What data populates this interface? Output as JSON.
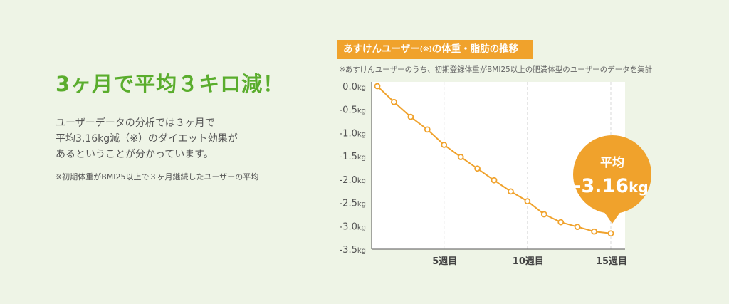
{
  "left": {
    "headline": "3ヶ月で平均３キロ減！",
    "body_lines": [
      "ユーザーデータの分析では３ヶ月で",
      "平均3.16kg減（※）のダイエット効果が",
      "あるということが分かっています。"
    ],
    "note": "※初期体重がBMI25以上で３ヶ月継続したユーザーの平均"
  },
  "chart_header": {
    "title_before": "あすけんユーザー",
    "title_mark": "(※)",
    "title_after": "の体重・脂肪の推移",
    "subtitle": "※あすけんユーザーのうち、初期登録体重がBMI25以上の肥満体型のユーザーのデータを集計"
  },
  "badge": {
    "label": "平均",
    "value": "-3.16",
    "unit": "kg"
  },
  "colors": {
    "accent_green": "#5aad2d",
    "line_orange": "#f0a22c",
    "background": "#eef4e6"
  },
  "chart_data": {
    "type": "line",
    "x": [
      1,
      2,
      3,
      4,
      5,
      6,
      7,
      8,
      9,
      10,
      11,
      12,
      13,
      14,
      15
    ],
    "series": [
      {
        "values": [
          0.0,
          -0.34,
          -0.66,
          -0.93,
          -1.26,
          -1.52,
          -1.77,
          -2.02,
          -2.26,
          -2.47,
          -2.75,
          -2.92,
          -3.02,
          -3.12,
          -3.16
        ]
      }
    ],
    "ylim": [
      -3.5,
      0.0
    ],
    "xlim": [
      1,
      15
    ],
    "yticks": [
      {
        "value": 0.0,
        "label": "0.0"
      },
      {
        "value": -0.5,
        "label": "-0.5"
      },
      {
        "value": -1.0,
        "label": "-1.0"
      },
      {
        "value": -1.5,
        "label": "-1.5"
      },
      {
        "value": -2.0,
        "label": "-2.0"
      },
      {
        "value": -2.5,
        "label": "-2.5"
      },
      {
        "value": -3.0,
        "label": "-3.0"
      },
      {
        "value": -3.5,
        "label": "-3.5"
      }
    ],
    "ytick_unit": "kg",
    "xticks": [
      {
        "value": 5,
        "label": "5週目"
      },
      {
        "value": 10,
        "label": "10週目"
      },
      {
        "value": 15,
        "label": "15週目"
      }
    ],
    "grid": "vertical dashed at x ticks",
    "legend": "none"
  }
}
